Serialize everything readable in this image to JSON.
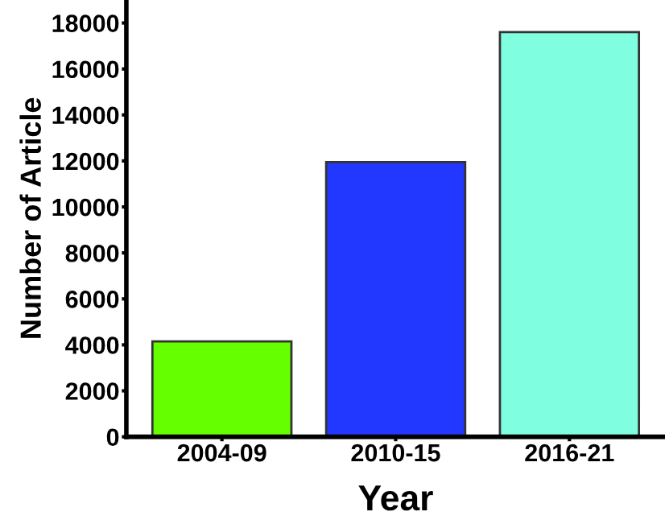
{
  "chart_data": {
    "type": "bar",
    "xlabel": "Year",
    "ylabel": "Number of Article",
    "categories": [
      "2004-09",
      "2010-15",
      "2016-21"
    ],
    "values": [
      4150,
      11950,
      17600
    ],
    "colors": [
      "#66ff00",
      "#2338ff",
      "#7fffdf"
    ],
    "ylim": [
      0,
      19000
    ],
    "yticks": [
      0,
      2000,
      4000,
      6000,
      8000,
      10000,
      12000,
      14000,
      16000,
      18000
    ],
    "grid": false
  }
}
